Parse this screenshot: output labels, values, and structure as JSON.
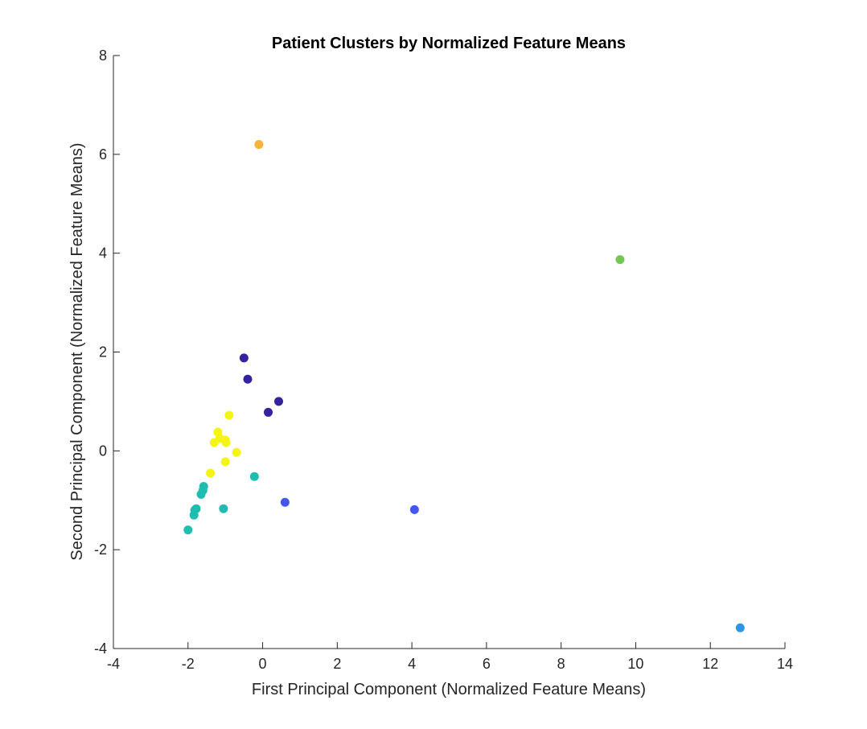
{
  "chart_data": {
    "type": "scatter",
    "title": "Patient Clusters by Normalized Feature Means",
    "xlabel": "First Principal Component (Normalized Feature Means)",
    "ylabel": "Second Principal Component (Normalized Feature Means)",
    "xlim": [
      -4,
      14
    ],
    "ylim": [
      -4,
      8
    ],
    "xticks": [
      -4,
      -2,
      0,
      2,
      4,
      6,
      8,
      10,
      12,
      14
    ],
    "yticks": [
      -4,
      -2,
      0,
      2,
      4,
      6,
      8
    ],
    "grid": false,
    "legend": "none",
    "points": [
      {
        "x": -0.5,
        "y": 1.88,
        "color": "#35229e"
      },
      {
        "x": -0.4,
        "y": 1.45,
        "color": "#35229e"
      },
      {
        "x": 0.43,
        "y": 1.0,
        "color": "#35229e"
      },
      {
        "x": 0.15,
        "y": 0.78,
        "color": "#35229e"
      },
      {
        "x": -0.9,
        "y": 0.72,
        "color": "#f5f514"
      },
      {
        "x": -1.2,
        "y": 0.38,
        "color": "#f5f514"
      },
      {
        "x": -1.15,
        "y": 0.25,
        "color": "#f5f514"
      },
      {
        "x": -1.0,
        "y": 0.22,
        "color": "#f5f514"
      },
      {
        "x": -1.3,
        "y": 0.17,
        "color": "#f5f514"
      },
      {
        "x": -0.98,
        "y": 0.17,
        "color": "#f5f514"
      },
      {
        "x": -0.7,
        "y": -0.03,
        "color": "#f5f514"
      },
      {
        "x": -1.0,
        "y": -0.22,
        "color": "#f5f514"
      },
      {
        "x": -1.4,
        "y": -0.45,
        "color": "#f5f514"
      },
      {
        "x": -0.22,
        "y": -0.52,
        "color": "#1fbcb0"
      },
      {
        "x": -1.58,
        "y": -0.72,
        "color": "#1fbcb0"
      },
      {
        "x": -1.6,
        "y": -0.8,
        "color": "#1fbcb0"
      },
      {
        "x": -1.65,
        "y": -0.88,
        "color": "#1fbcb0"
      },
      {
        "x": -1.05,
        "y": -1.17,
        "color": "#1fbcb0"
      },
      {
        "x": -1.78,
        "y": -1.17,
        "color": "#1fbcb0"
      },
      {
        "x": -1.82,
        "y": -1.2,
        "color": "#1fbcb0"
      },
      {
        "x": -1.84,
        "y": -1.3,
        "color": "#1fbcb0"
      },
      {
        "x": -2.0,
        "y": -1.6,
        "color": "#1fbcb0"
      },
      {
        "x": 0.6,
        "y": -1.04,
        "color": "#4357f0"
      },
      {
        "x": 4.07,
        "y": -1.19,
        "color": "#4357f0"
      },
      {
        "x": 12.8,
        "y": -3.58,
        "color": "#2d95e3"
      },
      {
        "x": 9.58,
        "y": 3.87,
        "color": "#75c754"
      },
      {
        "x": -0.1,
        "y": 6.2,
        "color": "#f7b23d"
      }
    ]
  }
}
